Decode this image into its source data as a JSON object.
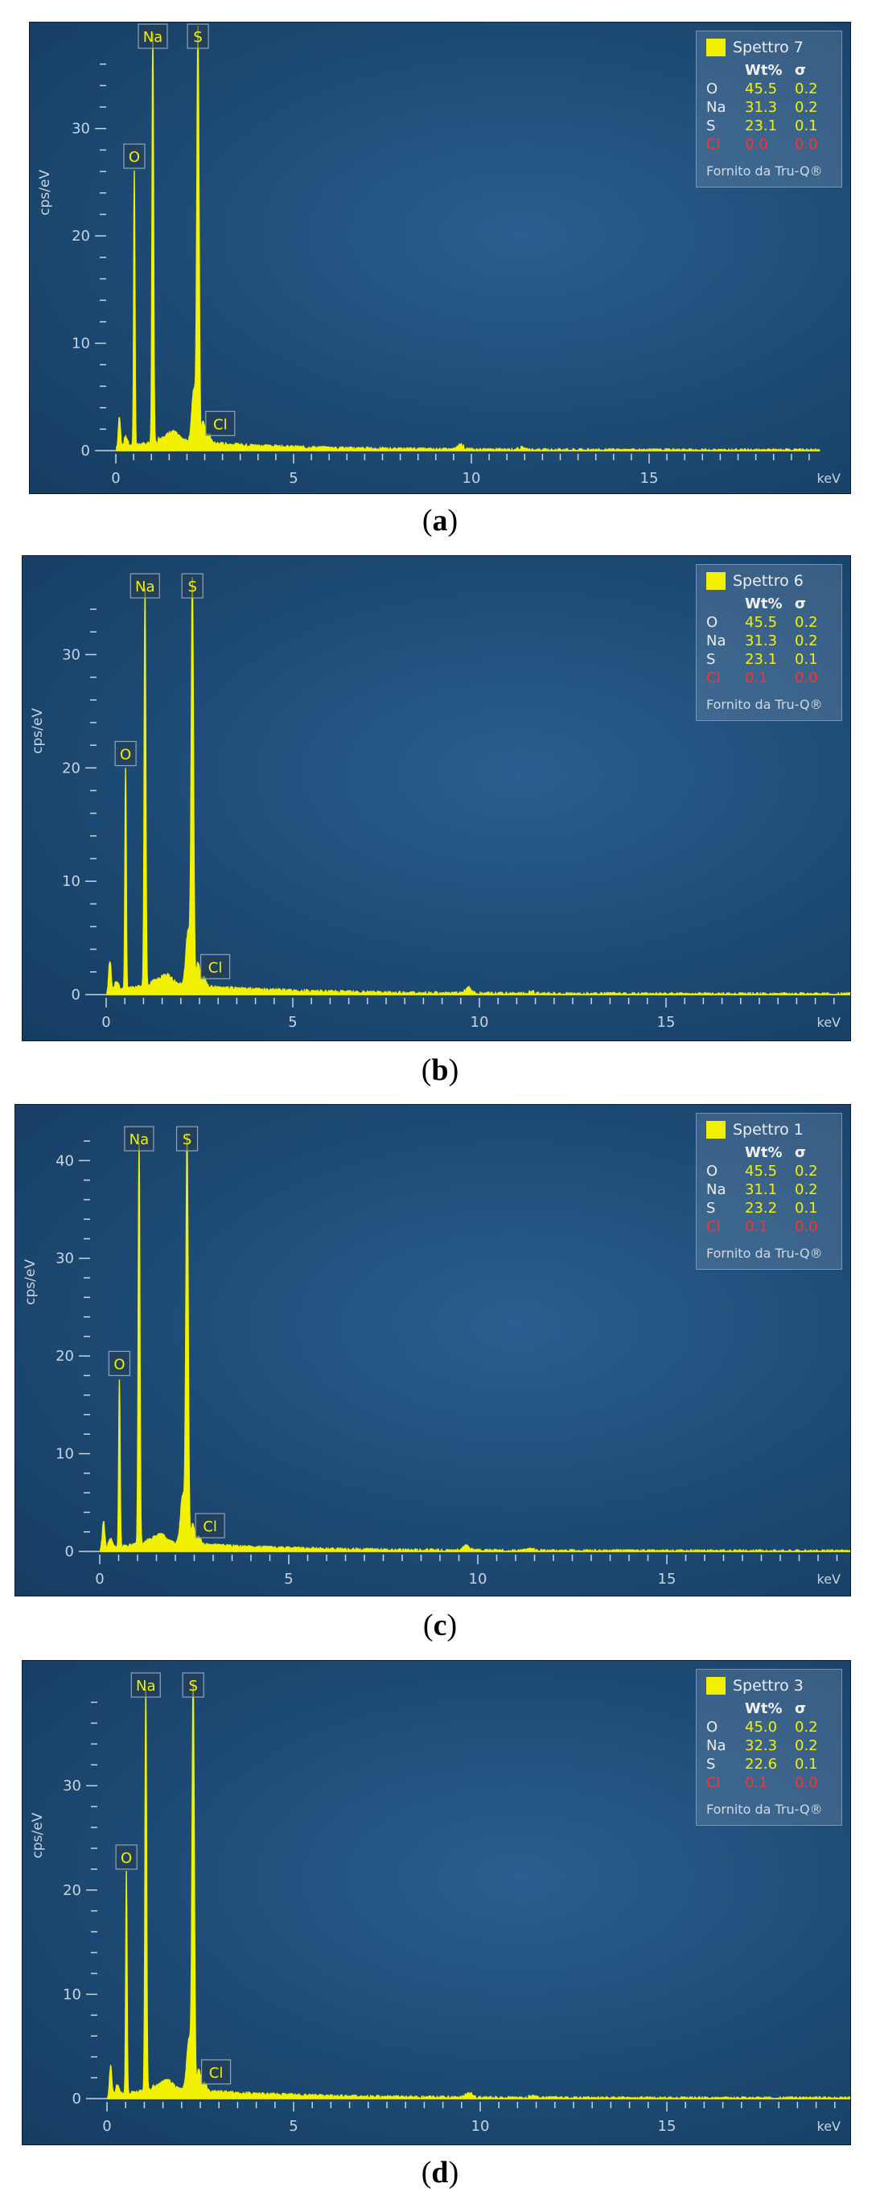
{
  "colors": {
    "spectrum": "#f2f200",
    "panel": "#1d4a74",
    "axis": "#c8d4e0",
    "chlorine": "#ff3030"
  },
  "legend_header": {
    "wt": "Wt%",
    "sigma": "σ"
  },
  "legend_footer": "Fornito da Tru-Q®",
  "chart_data": [
    {
      "type": "line",
      "panel": "a",
      "caption_letter": "a",
      "legend_title": "Spettro 7",
      "xlabel": "keV",
      "ylabel": "cps/eV",
      "xlim": [
        0,
        19.8
      ],
      "ylim": [
        0,
        36.5
      ],
      "xticks": [
        0,
        5,
        10,
        15
      ],
      "yticks": [
        0,
        10,
        20,
        30
      ],
      "peaks": [
        {
          "label": "O",
          "x": 0.52,
          "y": 25.5,
          "label_y": 26.3
        },
        {
          "label": "Na",
          "x": 1.04,
          "y": 38.0,
          "label_y": 39.0
        },
        {
          "label": "S",
          "x": 2.31,
          "y": 38.0,
          "label_y": 39.0
        },
        {
          "label": "Cl",
          "x": 2.62,
          "y": 0.6,
          "label_y": 1.4
        }
      ],
      "composition": [
        {
          "element": "O",
          "wt": "45.5",
          "sigma": "0.2"
        },
        {
          "element": "Na",
          "wt": "31.3",
          "sigma": "0.2"
        },
        {
          "element": "S",
          "wt": "23.1",
          "sigma": "0.1"
        },
        {
          "element": "Cl",
          "wt": "0.0",
          "sigma": "0.0"
        }
      ]
    },
    {
      "type": "line",
      "panel": "b",
      "caption_letter": "b",
      "legend_title": "Spettro 6",
      "xlabel": "keV",
      "ylabel": "cps/eV",
      "xlim": [
        0,
        20.2
      ],
      "ylim": [
        0,
        35.5
      ],
      "xticks": [
        0,
        5,
        10,
        15
      ],
      "yticks": [
        0,
        10,
        20,
        30
      ],
      "peaks": [
        {
          "label": "O",
          "x": 0.52,
          "y": 19.5,
          "label_y": 20.2
        },
        {
          "label": "Na",
          "x": 1.04,
          "y": 35.0,
          "label_y": 35.0
        },
        {
          "label": "S",
          "x": 2.31,
          "y": 35.0,
          "label_y": 35.0
        },
        {
          "label": "Cl",
          "x": 2.62,
          "y": 0.6,
          "label_y": 1.4
        }
      ],
      "composition": [
        {
          "element": "O",
          "wt": "45.5",
          "sigma": "0.2"
        },
        {
          "element": "Na",
          "wt": "31.3",
          "sigma": "0.2"
        },
        {
          "element": "S",
          "wt": "23.1",
          "sigma": "0.1"
        },
        {
          "element": "Cl",
          "wt": "0.1",
          "sigma": "0.0"
        }
      ]
    },
    {
      "type": "line",
      "panel": "c",
      "caption_letter": "c",
      "legend_title": "Spettro 1",
      "xlabel": "keV",
      "ylabel": "cps/eV",
      "xlim": [
        0,
        20.2
      ],
      "ylim": [
        0,
        42
      ],
      "xticks": [
        0,
        5,
        10,
        15
      ],
      "yticks": [
        0,
        10,
        20,
        30,
        40
      ],
      "peaks": [
        {
          "label": "O",
          "x": 0.52,
          "y": 17.2,
          "label_y": 18.0
        },
        {
          "label": "Na",
          "x": 1.04,
          "y": 41.0,
          "label_y": 41.0
        },
        {
          "label": "S",
          "x": 2.31,
          "y": 41.0,
          "label_y": 41.0
        },
        {
          "label": "Cl",
          "x": 2.62,
          "y": 0.6,
          "label_y": 1.4
        }
      ],
      "composition": [
        {
          "element": "O",
          "wt": "45.5",
          "sigma": "0.2"
        },
        {
          "element": "Na",
          "wt": "31.1",
          "sigma": "0.2"
        },
        {
          "element": "S",
          "wt": "23.2",
          "sigma": "0.1"
        },
        {
          "element": "Cl",
          "wt": "0.1",
          "sigma": "0.0"
        }
      ]
    },
    {
      "type": "line",
      "panel": "d",
      "caption_letter": "d",
      "legend_title": "Spettro 3",
      "xlabel": "keV",
      "ylabel": "cps/eV",
      "xlim": [
        0,
        20.2
      ],
      "ylim": [
        0,
        38.5
      ],
      "xticks": [
        0,
        5,
        10,
        15
      ],
      "yticks": [
        0,
        10,
        20,
        30
      ],
      "peaks": [
        {
          "label": "O",
          "x": 0.52,
          "y": 21.2,
          "label_y": 22.0
        },
        {
          "label": "Na",
          "x": 1.04,
          "y": 38.5,
          "label_y": 38.5
        },
        {
          "label": "S",
          "x": 2.31,
          "y": 38.5,
          "label_y": 38.5
        },
        {
          "label": "Cl",
          "x": 2.62,
          "y": 0.6,
          "label_y": 1.4
        }
      ],
      "composition": [
        {
          "element": "O",
          "wt": "45.0",
          "sigma": "0.2"
        },
        {
          "element": "Na",
          "wt": "32.3",
          "sigma": "0.2"
        },
        {
          "element": "S",
          "wt": "22.6",
          "sigma": "0.1"
        },
        {
          "element": "Cl",
          "wt": "0.1",
          "sigma": "0.0"
        }
      ]
    }
  ]
}
